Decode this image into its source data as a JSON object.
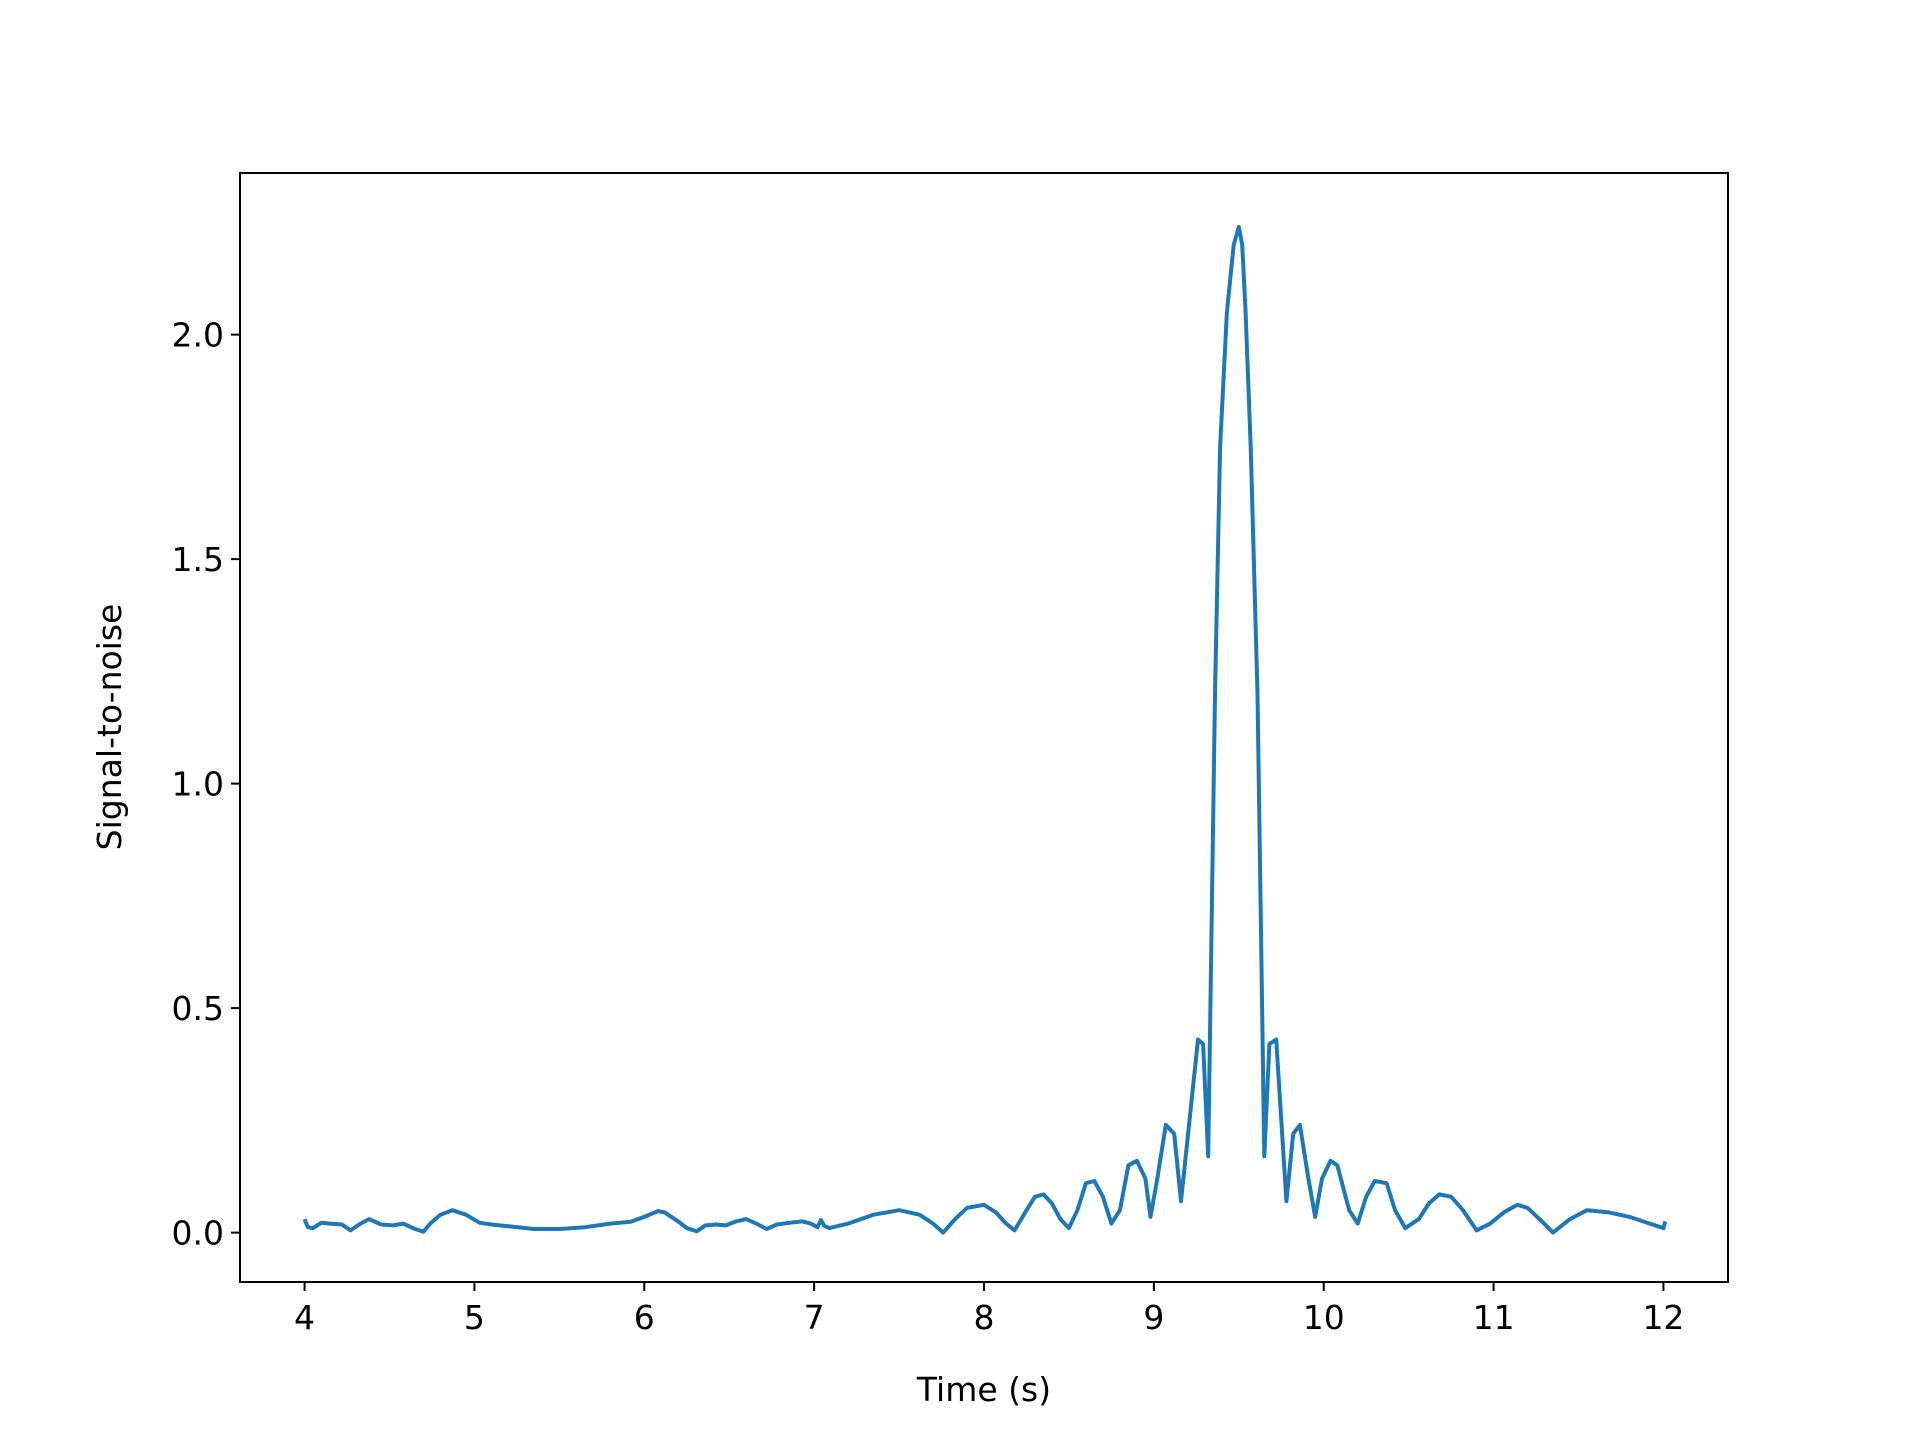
{
  "chart_data": {
    "type": "line",
    "title": "",
    "xlabel": "Time (s)",
    "ylabel": "Signal-to-noise",
    "xlim": [
      3.62,
      12.38
    ],
    "ylim": [
      -0.11,
      2.36
    ],
    "xticks": [
      4,
      5,
      6,
      7,
      8,
      9,
      10,
      11,
      12
    ],
    "xtick_labels": [
      "4",
      "5",
      "6",
      "7",
      "8",
      "9",
      "10",
      "11",
      "12"
    ],
    "yticks": [
      0.0,
      0.5,
      1.0,
      1.5,
      2.0
    ],
    "ytick_labels": [
      "0.0",
      "0.5",
      "1.0",
      "1.5",
      "2.0"
    ],
    "grid": false,
    "legend": "none",
    "series": [
      {
        "color": "#1f77b4",
        "x": [
          4.0,
          4.02,
          4.05,
          4.1,
          4.15,
          4.22,
          4.27,
          4.33,
          4.38,
          4.45,
          4.52,
          4.58,
          4.65,
          4.7,
          4.74,
          4.8,
          4.87,
          4.95,
          5.03,
          5.1,
          5.2,
          5.35,
          5.5,
          5.65,
          5.8,
          5.92,
          6.0,
          6.08,
          6.12,
          6.2,
          6.25,
          6.31,
          6.36,
          6.42,
          6.48,
          6.54,
          6.6,
          6.66,
          6.72,
          6.78,
          6.86,
          6.93,
          6.98,
          7.02,
          7.04,
          7.06,
          7.09,
          7.2,
          7.35,
          7.5,
          7.62,
          7.7,
          7.76,
          7.83,
          7.9,
          8.0,
          8.07,
          8.13,
          8.18,
          8.25,
          8.3,
          8.35,
          8.4,
          8.45,
          8.5,
          8.55,
          8.6,
          8.65,
          8.7,
          8.75,
          8.8,
          8.85,
          8.9,
          8.95,
          8.98,
          9.02,
          9.07,
          9.12,
          9.16,
          9.21,
          9.26,
          9.29,
          9.32,
          9.36,
          9.39,
          9.43,
          9.47,
          9.5,
          9.52,
          9.54,
          9.57,
          9.61,
          9.65,
          9.68,
          9.72,
          9.75,
          9.78,
          9.82,
          9.86,
          9.91,
          9.95,
          9.99,
          10.04,
          10.08,
          10.15,
          10.2,
          10.25,
          10.3,
          10.37,
          10.42,
          10.48,
          10.56,
          10.62,
          10.68,
          10.75,
          10.82,
          10.9,
          10.98,
          11.06,
          11.14,
          11.2,
          11.27,
          11.35,
          11.45,
          11.55,
          11.68,
          11.8,
          11.92,
          12.0,
          12.01
        ],
        "values": [
          0.03,
          0.012,
          0.01,
          0.022,
          0.02,
          0.018,
          0.005,
          0.02,
          0.03,
          0.018,
          0.016,
          0.02,
          0.008,
          0.002,
          0.02,
          0.04,
          0.05,
          0.04,
          0.022,
          0.018,
          0.014,
          0.008,
          0.008,
          0.012,
          0.02,
          0.024,
          0.035,
          0.048,
          0.045,
          0.025,
          0.01,
          0.003,
          0.016,
          0.018,
          0.016,
          0.025,
          0.03,
          0.02,
          0.008,
          0.018,
          0.022,
          0.025,
          0.02,
          0.012,
          0.028,
          0.015,
          0.01,
          0.02,
          0.04,
          0.05,
          0.04,
          0.02,
          0.0,
          0.03,
          0.055,
          0.062,
          0.045,
          0.02,
          0.005,
          0.05,
          0.08,
          0.085,
          0.065,
          0.03,
          0.01,
          0.05,
          0.11,
          0.115,
          0.08,
          0.02,
          0.05,
          0.15,
          0.16,
          0.12,
          0.035,
          0.12,
          0.24,
          0.22,
          0.07,
          0.25,
          0.43,
          0.42,
          0.17,
          1.2,
          1.75,
          2.05,
          2.2,
          2.24,
          2.2,
          2.05,
          1.75,
          1.2,
          0.17,
          0.42,
          0.43,
          0.25,
          0.07,
          0.22,
          0.24,
          0.12,
          0.035,
          0.12,
          0.16,
          0.15,
          0.05,
          0.02,
          0.08,
          0.115,
          0.11,
          0.05,
          0.01,
          0.03,
          0.065,
          0.085,
          0.08,
          0.05,
          0.005,
          0.02,
          0.045,
          0.062,
          0.055,
          0.03,
          0.0,
          0.03,
          0.05,
          0.045,
          0.035,
          0.02,
          0.01,
          0.025
        ]
      }
    ]
  }
}
